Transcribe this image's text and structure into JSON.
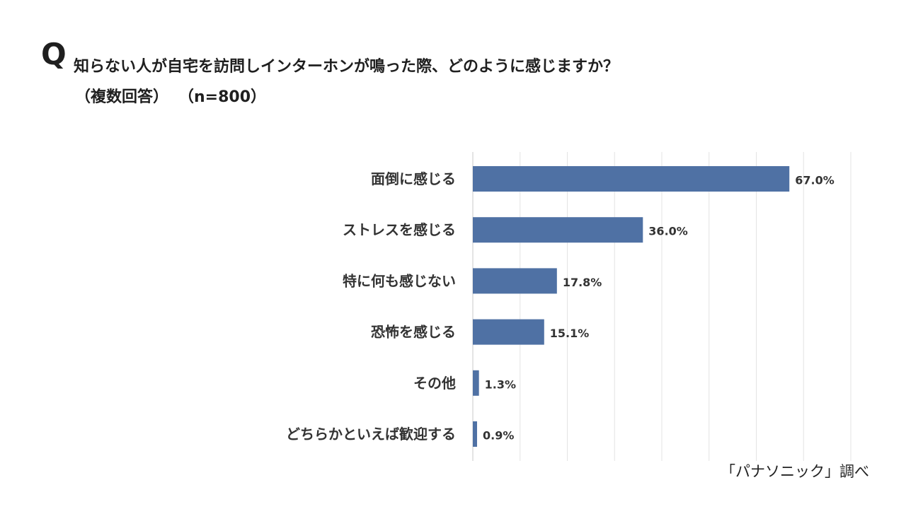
{
  "question": {
    "mark": "Q",
    "text": "知らない人が自宅を訪問しインターホンが鳴った際、どのように感じますか？",
    "note": "（複数回答）",
    "n": "（n=800）"
  },
  "source": "「パナソニック」調べ",
  "colors": {
    "bar": "#4f71a4",
    "grid": "#e3e3e3",
    "text": "#333333"
  },
  "chart_data": {
    "type": "bar",
    "orientation": "horizontal",
    "categories": [
      "面倒に感じる",
      "ストレスを感じる",
      "特に何も感じない",
      "恐怖を感じる",
      "その他",
      "どちらかといえば歓迎する"
    ],
    "values": [
      67.0,
      36.0,
      17.8,
      15.1,
      1.3,
      0.9
    ],
    "data_labels": [
      "67.0%",
      "36.0%",
      "17.8%",
      "15.1%",
      "1.3%",
      "0.9%"
    ],
    "unit": "%",
    "xlim": [
      0,
      80
    ],
    "grid": true,
    "legend": "none"
  }
}
